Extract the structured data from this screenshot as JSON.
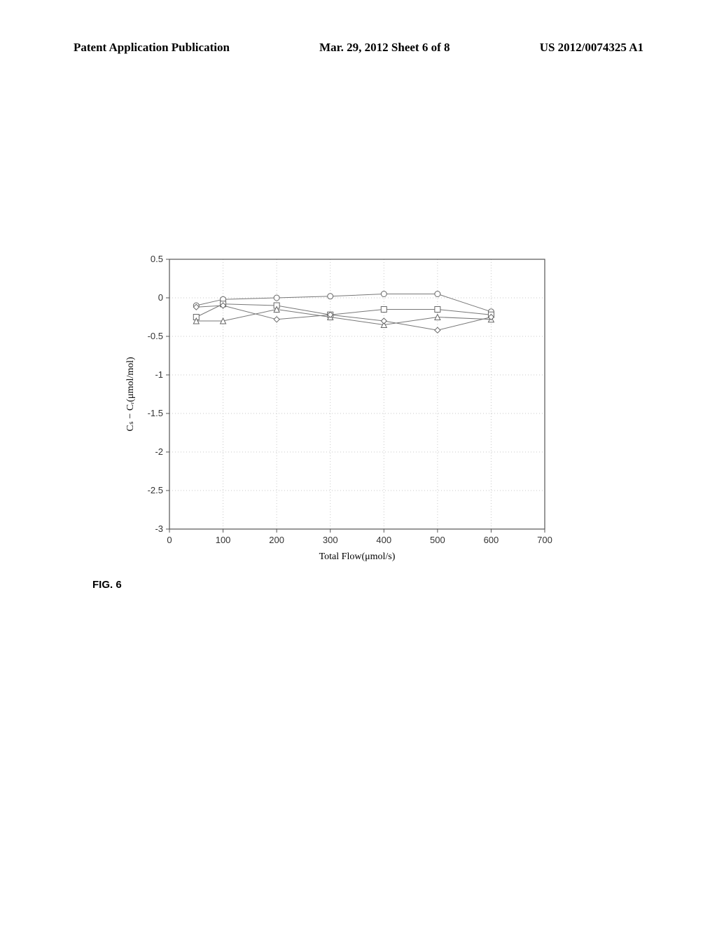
{
  "header": {
    "left": "Patent Application Publication",
    "center": "Mar. 29, 2012  Sheet 6 of 8",
    "right": "US 2012/0074325 A1"
  },
  "figureLabel": "FIG. 6",
  "chart": {
    "type": "line",
    "xlabel": "Total Flow(μmol/s)",
    "ylabel": "Cₛ − Cᵣ(μmol/mol)",
    "xlim": [
      0,
      700
    ],
    "ylim": [
      -3,
      0.5
    ],
    "xticks": [
      0,
      100,
      200,
      300,
      400,
      500,
      600,
      700
    ],
    "yticks": [
      -3,
      -2.5,
      -2,
      -1.5,
      -1,
      -0.5,
      0,
      0.5
    ],
    "background_color": "#ffffff",
    "grid_color": "#c8c8c8",
    "axis_color": "#555555",
    "line_color": "#777777",
    "marker_edge": "#666666",
    "marker_fill": "#ffffff",
    "label_fontsize": 14,
    "tick_fontsize": 13,
    "marker_size": 4,
    "line_width": 1,
    "series": [
      {
        "marker": "circle",
        "x": [
          50,
          100,
          200,
          300,
          400,
          500,
          600
        ],
        "y": [
          -0.1,
          -0.02,
          0.0,
          0.02,
          0.05,
          0.05,
          -0.18
        ]
      },
      {
        "marker": "square",
        "x": [
          50,
          100,
          200,
          300,
          400,
          500,
          600
        ],
        "y": [
          -0.25,
          -0.08,
          -0.1,
          -0.22,
          -0.15,
          -0.15,
          -0.22
        ]
      },
      {
        "marker": "triangle",
        "x": [
          50,
          100,
          200,
          300,
          400,
          500,
          600
        ],
        "y": [
          -0.3,
          -0.3,
          -0.15,
          -0.25,
          -0.35,
          -0.25,
          -0.28
        ]
      },
      {
        "marker": "diamond",
        "x": [
          50,
          100,
          200,
          300,
          400,
          500,
          600
        ],
        "y": [
          -0.12,
          -0.1,
          -0.28,
          -0.22,
          -0.3,
          -0.42,
          -0.25
        ]
      }
    ]
  }
}
